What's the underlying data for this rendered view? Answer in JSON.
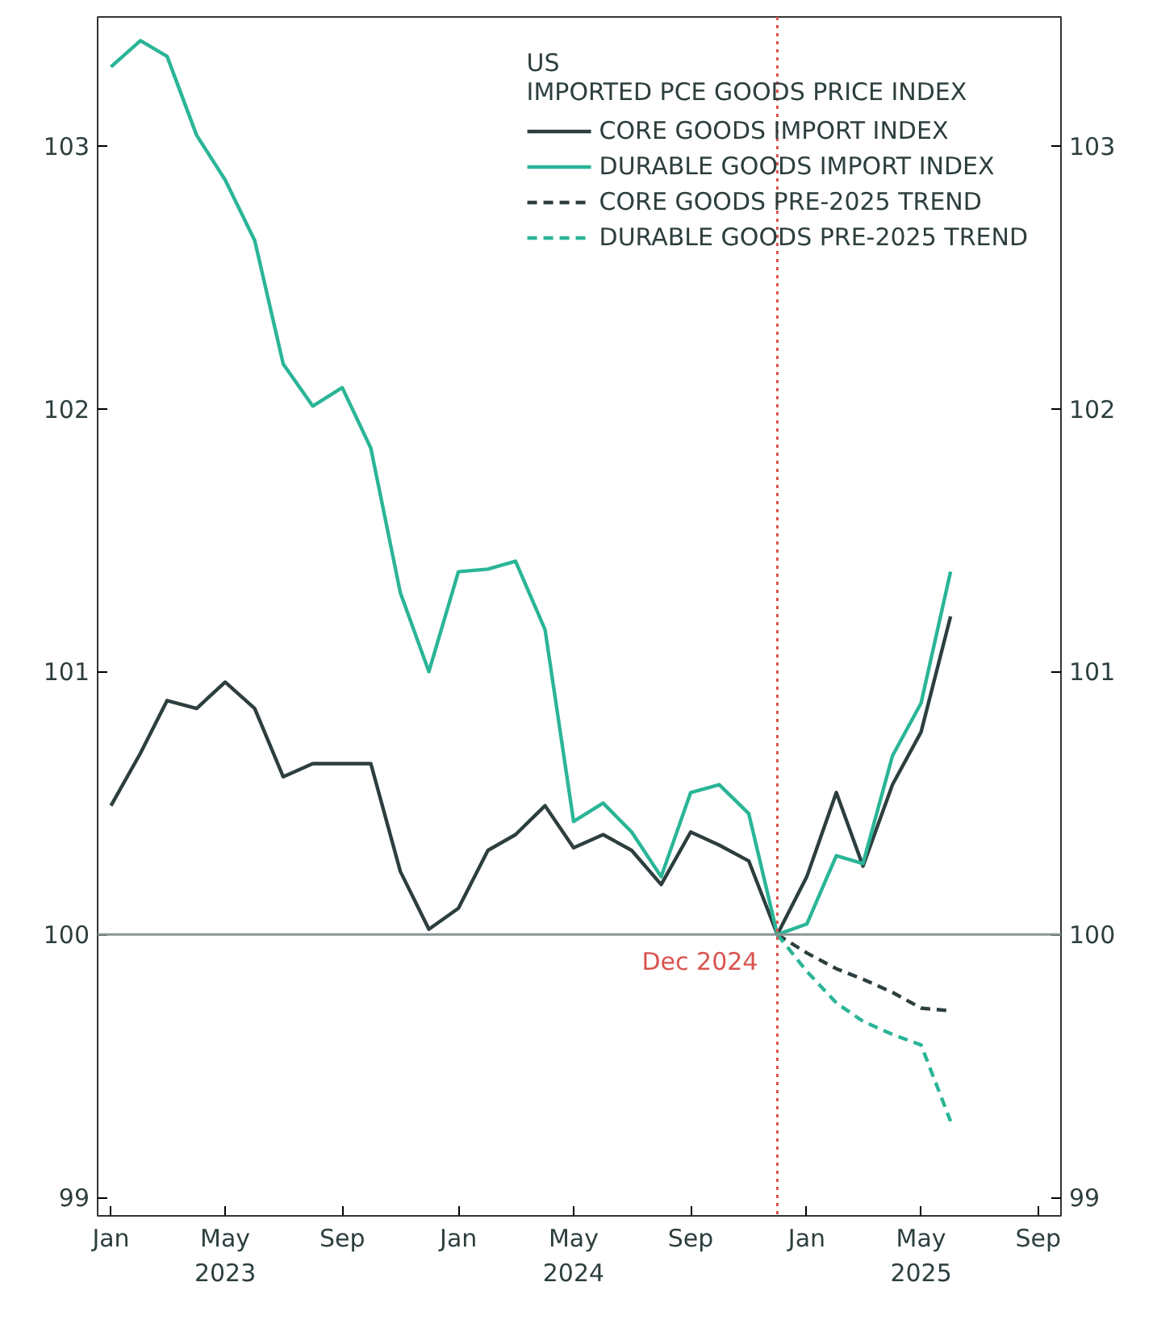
{
  "chart_data": {
    "type": "line",
    "legend_title": "US\nIMPORTED PCE GOODS PRICE INDEX",
    "x": [
      "2023-01",
      "2023-02",
      "2023-03",
      "2023-04",
      "2023-05",
      "2023-06",
      "2023-07",
      "2023-08",
      "2023-09",
      "2023-10",
      "2023-11",
      "2023-12",
      "2024-01",
      "2024-02",
      "2024-03",
      "2024-04",
      "2024-05",
      "2024-06",
      "2024-07",
      "2024-08",
      "2024-09",
      "2024-10",
      "2024-11",
      "2024-12",
      "2025-01",
      "2025-02",
      "2025-03",
      "2025-04",
      "2025-05",
      "2025-06"
    ],
    "series": [
      {
        "name": "CORE GOODS IMPORT INDEX",
        "color": "#2d3e3e",
        "line_style": "solid",
        "values": [
          100.49,
          100.69,
          100.89,
          100.86,
          100.96,
          100.86,
          100.6,
          100.65,
          100.65,
          100.65,
          100.24,
          100.02,
          100.1,
          100.32,
          100.38,
          100.49,
          100.33,
          100.38,
          100.32,
          100.19,
          100.39,
          100.34,
          100.28,
          100.0,
          100.22,
          100.54,
          100.26,
          100.57,
          100.77,
          101.21
        ]
      },
      {
        "name": "DURABLE GOODS IMPORT INDEX",
        "color": "#2ab597",
        "line_style": "solid",
        "values": [
          103.3,
          103.4,
          103.34,
          103.04,
          102.87,
          102.64,
          102.17,
          102.01,
          102.08,
          101.85,
          101.3,
          101.0,
          101.38,
          101.39,
          101.42,
          101.16,
          100.43,
          100.5,
          100.39,
          100.22,
          100.54,
          100.57,
          100.46,
          100.0,
          100.04,
          100.3,
          100.27,
          100.68,
          100.88,
          101.38
        ]
      },
      {
        "name": "CORE GOODS PRE-2025 TREND",
        "color": "#2d3e3e",
        "line_style": "dashed",
        "x": [
          "2024-12",
          "2025-01",
          "2025-02",
          "2025-03",
          "2025-04",
          "2025-05",
          "2025-06"
        ],
        "values": [
          100.0,
          99.93,
          99.87,
          99.83,
          99.78,
          99.72,
          99.71
        ]
      },
      {
        "name": "DURABLE GOODS PRE-2025 TREND",
        "color": "#2ab597",
        "line_style": "dashed",
        "x": [
          "2024-12",
          "2025-01",
          "2025-02",
          "2025-03",
          "2025-04",
          "2025-05",
          "2025-06"
        ],
        "values": [
          100.0,
          99.86,
          99.74,
          99.67,
          99.62,
          99.58,
          99.29
        ]
      }
    ],
    "xlim": [
      "2022-12-18",
      "2025-09-25"
    ],
    "xticks": [
      {
        "value": "2023-01",
        "label": "Jan"
      },
      {
        "value": "2023-05",
        "label": "May\n2023"
      },
      {
        "value": "2023-09",
        "label": "Sep"
      },
      {
        "value": "2024-01",
        "label": "Jan"
      },
      {
        "value": "2024-05",
        "label": "May\n2024"
      },
      {
        "value": "2024-09",
        "label": "Sep"
      },
      {
        "value": "2025-01",
        "label": "Jan"
      },
      {
        "value": "2025-05",
        "label": "May\n2025"
      },
      {
        "value": "2025-09",
        "label": "Sep"
      }
    ],
    "ylim": [
      98.93,
      103.49
    ],
    "yticks": [
      99,
      100,
      101,
      102,
      103
    ],
    "y2lim": [
      98.93,
      103.49
    ],
    "y2ticks": [
      99,
      100,
      101,
      102,
      103
    ],
    "ref_lines": [
      {
        "axis": "x",
        "value": "2024-12",
        "label": "Dec 2024",
        "color": "#d9534f",
        "line_style": "dotted"
      },
      {
        "axis": "y",
        "value": 100,
        "label": null,
        "color": "#8a9494",
        "line_style": "solid"
      }
    ],
    "grid": false,
    "legend": "top right"
  }
}
